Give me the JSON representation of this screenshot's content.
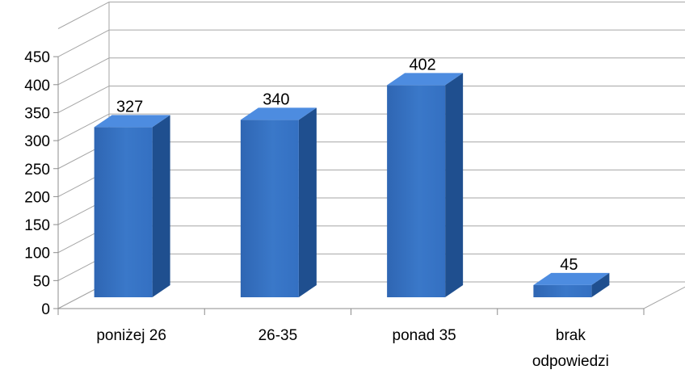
{
  "chart_data": {
    "type": "bar",
    "style": "3d-column",
    "categories": [
      "poniżej 26",
      "26-35",
      "ponad 35",
      "brak odpowiedzi"
    ],
    "category_lines": [
      [
        "poniżej 26"
      ],
      [
        "26-35"
      ],
      [
        "ponad 35"
      ],
      [
        "brak",
        "odpowiedzi"
      ]
    ],
    "values": [
      327,
      340,
      402,
      45
    ],
    "data_labels": [
      "327",
      "340",
      "402",
      "45"
    ],
    "yticks": [
      0,
      50,
      100,
      150,
      200,
      250,
      300,
      350,
      400,
      450
    ],
    "ylim": [
      0,
      500
    ],
    "grid": true,
    "legend": "none",
    "colors": {
      "bar_front": "#3a78c9",
      "bar_side": "#1f4f8f",
      "bar_top": "#4d8ce0",
      "grid": "#a6a6a6",
      "axis": "#8c8c8c",
      "text": "#000000"
    }
  }
}
